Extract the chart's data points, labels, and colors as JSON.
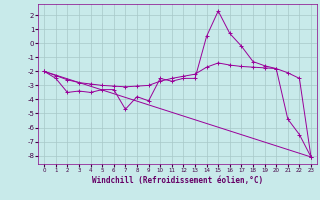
{
  "xlabel": "Windchill (Refroidissement éolien,°C)",
  "bg_color": "#c8eaea",
  "grid_color": "#a8c8c8",
  "line_color": "#990099",
  "xlim": [
    -0.5,
    23.5
  ],
  "ylim": [
    -8.6,
    2.8
  ],
  "xticks": [
    0,
    1,
    2,
    3,
    4,
    5,
    6,
    7,
    8,
    9,
    10,
    11,
    12,
    13,
    14,
    15,
    16,
    17,
    18,
    19,
    20,
    21,
    22,
    23
  ],
  "yticks": [
    -8,
    -7,
    -6,
    -5,
    -4,
    -3,
    -2,
    -1,
    0,
    1,
    2
  ],
  "jagged_x": [
    0,
    1,
    2,
    3,
    4,
    5,
    6,
    7,
    8,
    9,
    10,
    11,
    12,
    13,
    14,
    15,
    16,
    17,
    18,
    19,
    20,
    21,
    22,
    23
  ],
  "jagged_y": [
    -2.0,
    -2.5,
    -3.5,
    -3.4,
    -3.5,
    -3.3,
    -3.3,
    -4.7,
    -3.8,
    -4.1,
    -2.5,
    -2.7,
    -2.5,
    -2.5,
    0.5,
    2.3,
    0.7,
    -0.2,
    -1.3,
    -1.6,
    -1.8,
    -5.4,
    -6.5,
    -8.1
  ],
  "trend_x": [
    0,
    23
  ],
  "trend_y": [
    -2.0,
    -8.1
  ],
  "smooth_x": [
    0,
    1,
    2,
    3,
    4,
    5,
    6,
    7,
    8,
    9,
    10,
    11,
    12,
    13,
    14,
    15,
    16,
    17,
    18,
    19,
    20,
    21,
    22,
    23
  ],
  "smooth_y": [
    -2.0,
    -2.3,
    -2.6,
    -2.8,
    -2.9,
    -3.0,
    -3.05,
    -3.1,
    -3.05,
    -3.0,
    -2.7,
    -2.5,
    -2.35,
    -2.2,
    -1.7,
    -1.4,
    -1.55,
    -1.65,
    -1.7,
    -1.75,
    -1.8,
    -2.1,
    -2.5,
    -8.1
  ]
}
